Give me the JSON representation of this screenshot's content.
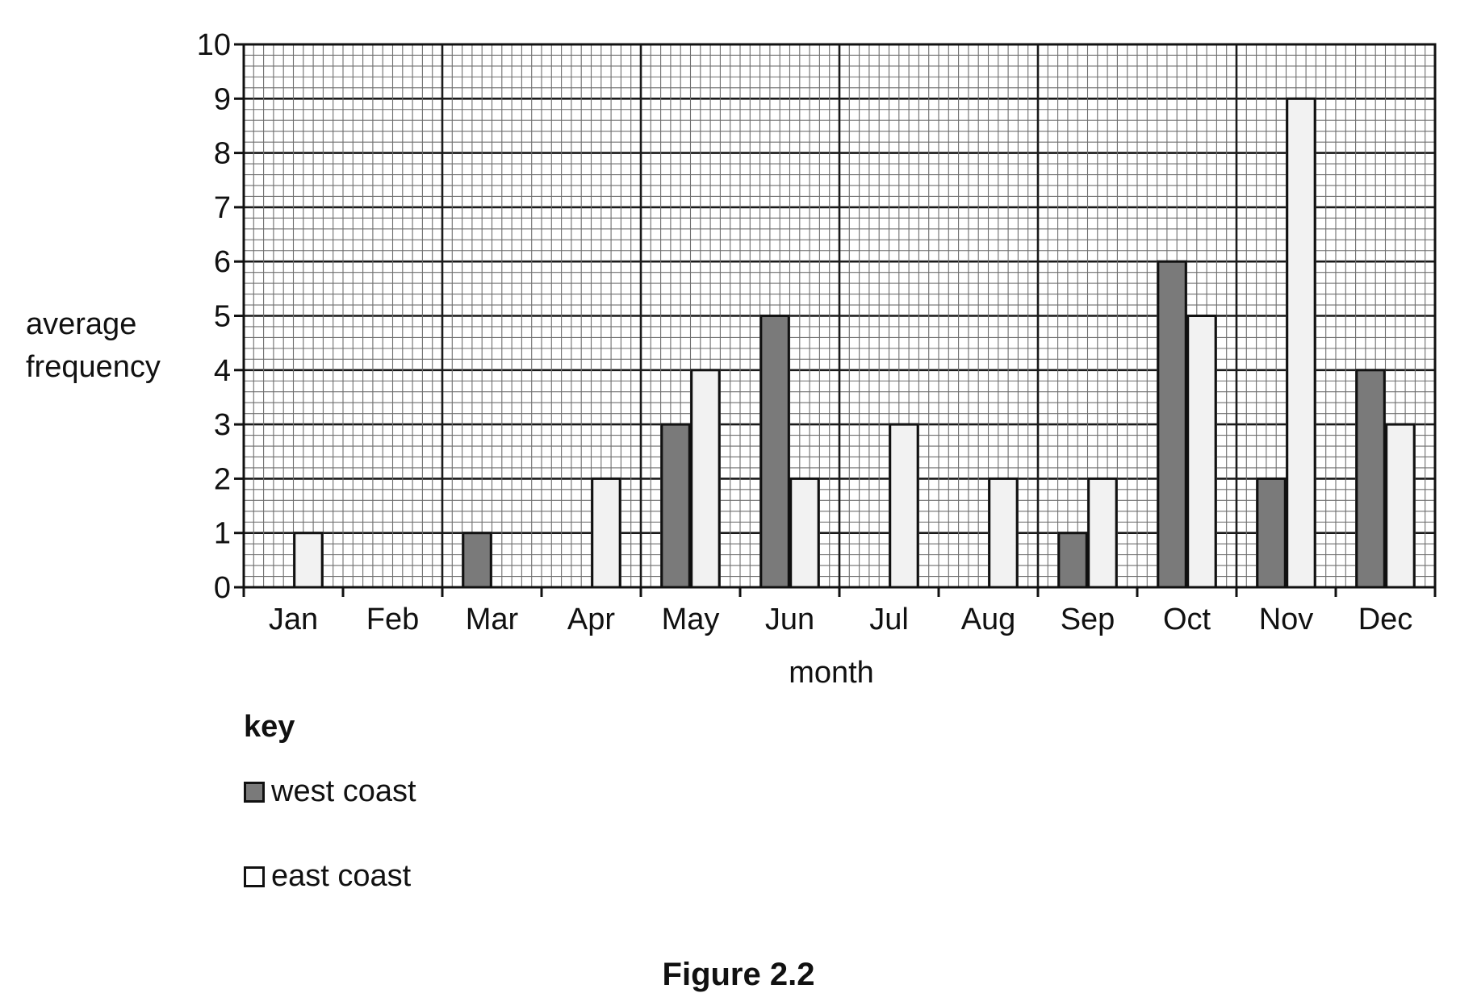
{
  "chart_data": {
    "type": "bar",
    "categories": [
      "Jan",
      "Feb",
      "Mar",
      "Apr",
      "May",
      "Jun",
      "Jul",
      "Aug",
      "Sep",
      "Oct",
      "Nov",
      "Dec"
    ],
    "series": [
      {
        "name": "west coast",
        "values": [
          0,
          0,
          1,
          0,
          3,
          5,
          0,
          0,
          1,
          6,
          2,
          4
        ],
        "color": "#7a7a7a"
      },
      {
        "name": "east coast",
        "values": [
          1,
          0,
          0,
          2,
          4,
          2,
          3,
          2,
          2,
          5,
          9,
          3
        ],
        "color": "#f2f2f2"
      }
    ],
    "xlabel": "month",
    "ylabel": [
      "average",
      "frequency"
    ],
    "ylim": [
      0,
      10
    ],
    "yticks": [
      0,
      1,
      2,
      3,
      4,
      5,
      6,
      7,
      8,
      9,
      10
    ],
    "grid": true,
    "legend": {
      "title": "key",
      "placement": "below"
    }
  },
  "figure_caption": "Figure 2.2"
}
